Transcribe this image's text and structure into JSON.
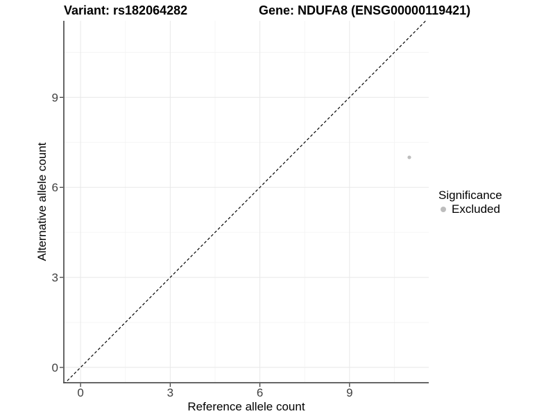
{
  "figure": {
    "title_left": "Variant: rs182064282",
    "title_right": "Gene: NDUFA8 (ENSG00000119421)"
  },
  "chart_data": {
    "type": "scatter",
    "title": "Variant: rs182064282 | Gene: NDUFA8 (ENSG00000119421)",
    "xlabel": "Reference allele count",
    "ylabel": "Alternative allele count",
    "xlim": [
      -0.56,
      11.65
    ],
    "ylim": [
      -0.51,
      11.55
    ],
    "x_breaks": [
      0,
      3,
      6,
      9
    ],
    "y_breaks": [
      0,
      3,
      6,
      9
    ],
    "x_minor_breaks": [
      1.5,
      4.5,
      7.5,
      10.5
    ],
    "y_minor_breaks": [
      1.5,
      4.5,
      7.5,
      10.5
    ],
    "grid": true,
    "series": [
      {
        "name": "Excluded",
        "color": "#bdbdbd",
        "points": [
          {
            "x": 11,
            "y": 7
          }
        ]
      }
    ],
    "reference_line": {
      "type": "identity",
      "style": "dashed",
      "color": "#000000"
    },
    "legend": {
      "title": "Significance",
      "position": "right",
      "items": [
        {
          "label": "Excluded",
          "color": "#bdbdbd"
        }
      ]
    },
    "colors": {
      "background": "#ffffff",
      "grid_major": "#e8e8e8",
      "grid_minor": "#f3f3f3",
      "axis_line": "#333333",
      "tick_text": "#404040",
      "point": "#bdbdbd"
    }
  }
}
